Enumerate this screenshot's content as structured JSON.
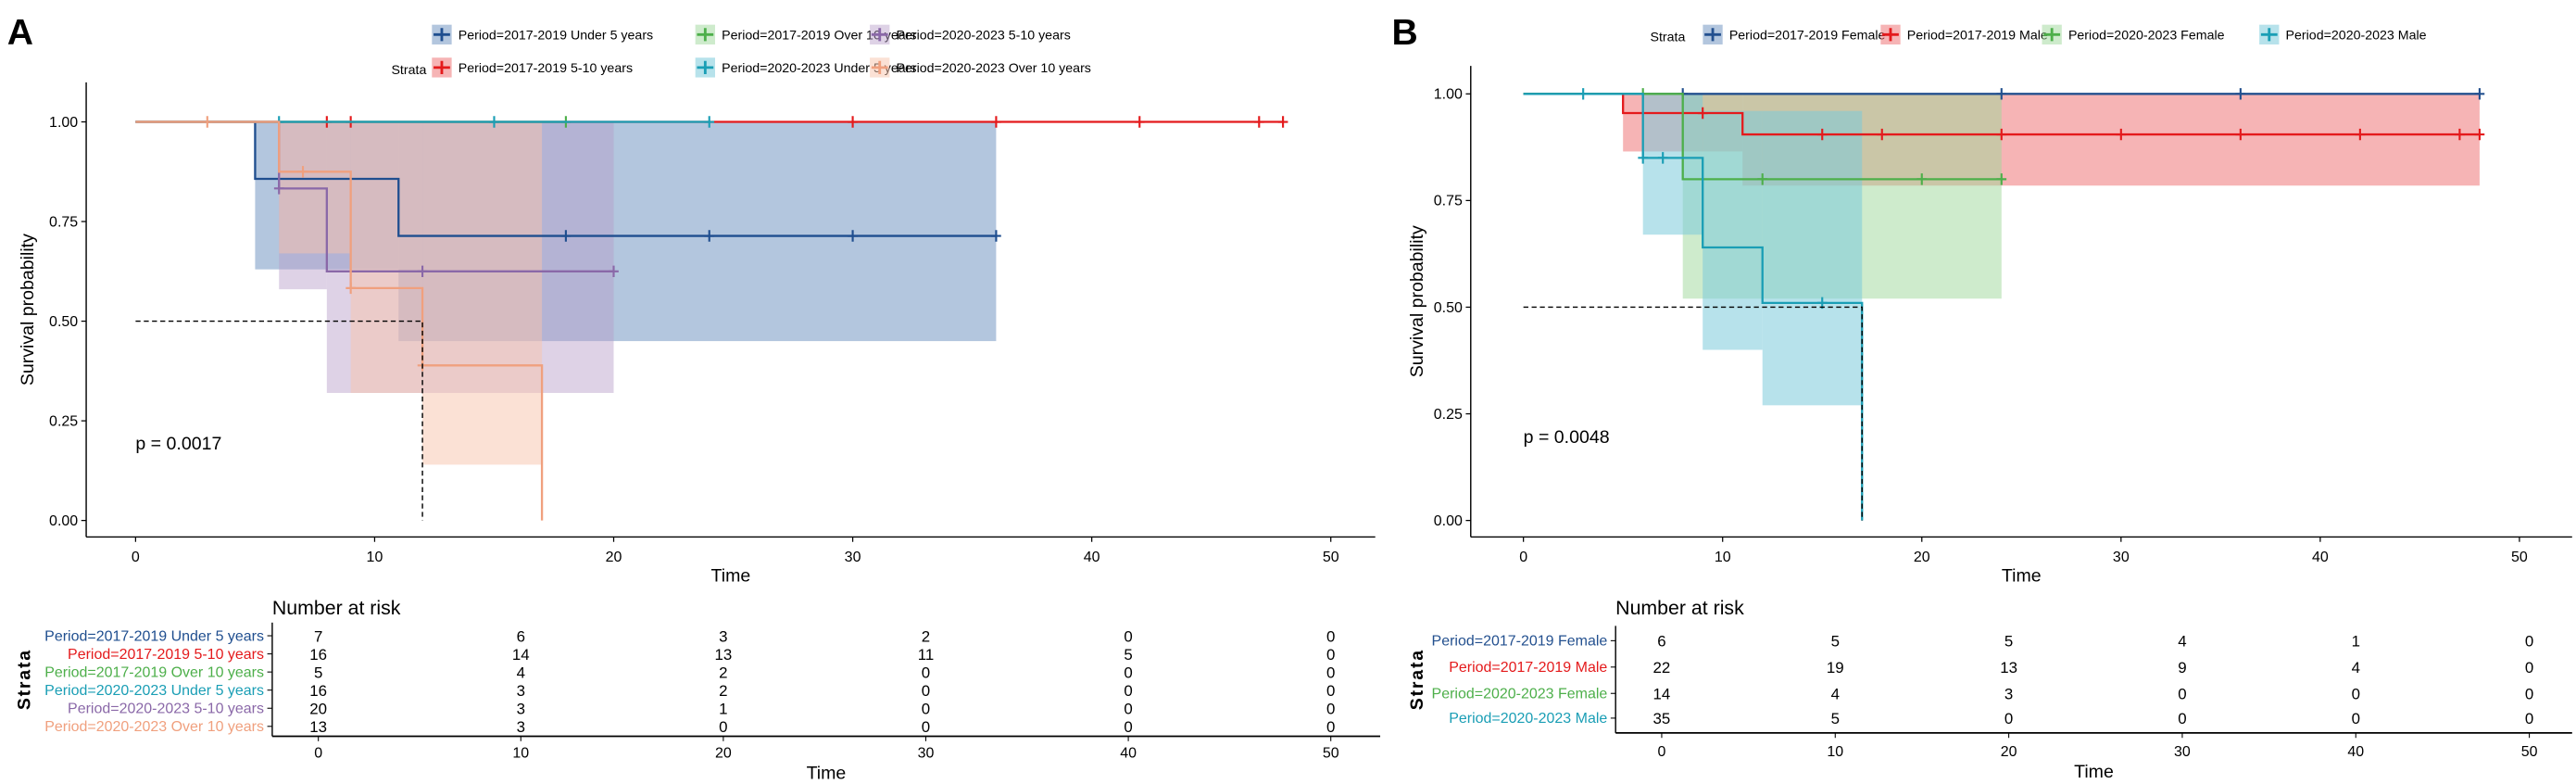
{
  "chart_data": [
    {
      "panel_label": "A",
      "type": "line",
      "subtype": "kaplan-meier",
      "legend_title": "Strata",
      "legend_placement": "top",
      "xlabel": "Time",
      "ylabel": "Survival probability",
      "xlim": [
        0,
        50
      ],
      "ylim": [
        0,
        1
      ],
      "xticks": [
        "0",
        "10",
        "20",
        "30",
        "40",
        "50"
      ],
      "yticks": [
        "0.00",
        "0.25",
        "0.50",
        "0.75",
        "1.00"
      ],
      "pvalue_text": "p = 0.0017",
      "median_line": {
        "survival": 0.5,
        "time": 12
      },
      "series": [
        {
          "name": "Period=2017-2019 Under 5 years",
          "color": "#1F4E8F",
          "fill": "#4A78B0",
          "fill_opacity": 0.42,
          "steps": [
            [
              0,
              1
            ],
            [
              5,
              0.857
            ],
            [
              11,
              0.714
            ]
          ],
          "end": 36,
          "censor": [
            18,
            24,
            30,
            36
          ],
          "ci": [
            [
              5,
              11,
              0.63,
              1
            ],
            [
              11,
              36,
              0.45,
              1
            ]
          ]
        },
        {
          "name": "Period=2017-2019 5-10 years",
          "color": "#E41A1C",
          "fill": "#EE6A6C",
          "fill_opacity": 0.5,
          "steps": [
            [
              0,
              1
            ]
          ],
          "end": 48,
          "censor": [
            8,
            9,
            30,
            36,
            42,
            47,
            48
          ],
          "ci": []
        },
        {
          "name": "Period=2017-2019 Over 10 years",
          "color": "#4DAF4A",
          "fill": "#9ED89A",
          "fill_opacity": 0.5,
          "steps": [
            [
              0,
              1
            ]
          ],
          "end": 18,
          "censor": [
            18
          ],
          "ci": []
        },
        {
          "name": "Period=2020-2023 Under 5 years",
          "color": "#1A9EB5",
          "fill": "#7CCBDB",
          "fill_opacity": 0.55,
          "steps": [
            [
              0,
              1
            ]
          ],
          "end": 24,
          "censor": [
            6,
            15,
            24
          ],
          "ci": []
        },
        {
          "name": "Period=2020-2023 5-10 years",
          "color": "#8A68A8",
          "fill": "#B59CC8",
          "fill_opacity": 0.45,
          "steps": [
            [
              0,
              1
            ],
            [
              6,
              0.833
            ],
            [
              8,
              0.625
            ]
          ],
          "end": 20,
          "censor": [
            6,
            12,
            20
          ],
          "ci": [
            [
              6,
              8,
              0.58,
              1
            ],
            [
              8,
              20,
              0.32,
              1
            ]
          ]
        },
        {
          "name": "Period=2020-2023 Over 10 years",
          "color": "#F0A07E",
          "fill": "#F8C4AC",
          "fill_opacity": 0.5,
          "steps": [
            [
              0,
              1
            ],
            [
              6,
              0.875
            ],
            [
              9,
              0.583
            ],
            [
              12,
              0.389
            ],
            [
              17,
              0
            ]
          ],
          "end": 17,
          "censor": [
            3,
            7,
            9,
            12
          ],
          "ci": [
            [
              6,
              9,
              0.67,
              1
            ],
            [
              9,
              12,
              0.32,
              1
            ],
            [
              12,
              17,
              0.14,
              1
            ]
          ]
        }
      ],
      "risk_table": {
        "title": "Number at risk",
        "ylabel": "Strata",
        "xlabel": "Time",
        "times": [
          "0",
          "10",
          "20",
          "30",
          "40",
          "50"
        ],
        "rows": [
          {
            "label": "Period=2017-2019 Under 5 years",
            "values": [
              "7",
              "6",
              "3",
              "2",
              "0",
              "0"
            ]
          },
          {
            "label": "Period=2017-2019 5-10 years",
            "values": [
              "16",
              "14",
              "13",
              "11",
              "5",
              "0"
            ]
          },
          {
            "label": "Period=2017-2019 Over 10 years",
            "values": [
              "5",
              "4",
              "2",
              "0",
              "0",
              "0"
            ]
          },
          {
            "label": "Period=2020-2023 Under 5 years",
            "values": [
              "16",
              "3",
              "2",
              "0",
              "0",
              "0"
            ]
          },
          {
            "label": "Period=2020-2023 5-10 years",
            "values": [
              "20",
              "3",
              "1",
              "0",
              "0",
              "0"
            ]
          },
          {
            "label": "Period=2020-2023 Over 10 years",
            "values": [
              "13",
              "3",
              "0",
              "0",
              "0",
              "0"
            ]
          }
        ]
      }
    },
    {
      "panel_label": "B",
      "type": "line",
      "subtype": "kaplan-meier",
      "legend_title": "Strata",
      "legend_placement": "top",
      "xlabel": "Time",
      "ylabel": "Survival probability",
      "xlim": [
        0,
        50
      ],
      "ylim": [
        0,
        1
      ],
      "xticks": [
        "0",
        "10",
        "20",
        "30",
        "40",
        "50"
      ],
      "yticks": [
        "0.00",
        "0.25",
        "0.50",
        "0.75",
        "1.00"
      ],
      "pvalue_text": "p = 0.0048",
      "median_line": {
        "survival": 0.5,
        "time": 17
      },
      "series": [
        {
          "name": "Period=2017-2019  Female",
          "color": "#23508F",
          "fill": "#4A78B0",
          "fill_opacity": 0.42,
          "steps": [
            [
              0,
              1
            ]
          ],
          "end": 48,
          "censor": [
            8,
            24,
            36,
            48
          ],
          "ci": []
        },
        {
          "name": "Period=2017-2019  Male",
          "color": "#E41A1C",
          "fill": "#EE6A6C",
          "fill_opacity": 0.5,
          "steps": [
            [
              0,
              1
            ],
            [
              5,
              0.955
            ],
            [
              11,
              0.905
            ]
          ],
          "end": 48,
          "censor": [
            9,
            15,
            18,
            24,
            30,
            36,
            42,
            47,
            48
          ],
          "ci": [
            [
              5,
              11,
              0.865,
              1
            ],
            [
              11,
              48,
              0.785,
              1
            ]
          ]
        },
        {
          "name": "Period=2020-2023  Female",
          "color": "#4DAF4A",
          "fill": "#9ED89A",
          "fill_opacity": 0.5,
          "steps": [
            [
              0,
              1
            ],
            [
              8,
              0.8
            ]
          ],
          "end": 24,
          "censor": [
            6,
            12,
            20,
            24
          ],
          "ci": [
            [
              8,
              24,
              0.52,
              1
            ]
          ]
        },
        {
          "name": "Period=2020-2023  Male",
          "color": "#1A9EB5",
          "fill": "#7CCBDB",
          "fill_opacity": 0.55,
          "steps": [
            [
              0,
              1
            ],
            [
              6,
              0.85
            ],
            [
              9,
              0.64
            ],
            [
              12,
              0.51
            ],
            [
              17,
              0
            ]
          ],
          "end": 17,
          "censor": [
            3,
            6,
            7,
            15
          ],
          "ci": [
            [
              6,
              9,
              0.67,
              1
            ],
            [
              9,
              12,
              0.4,
              0.96
            ],
            [
              12,
              17,
              0.27,
              0.96
            ]
          ]
        }
      ],
      "risk_table": {
        "title": "Number at risk",
        "ylabel": "Strata",
        "xlabel": "Time",
        "times": [
          "0",
          "10",
          "20",
          "30",
          "40",
          "50"
        ],
        "rows": [
          {
            "label": "Period=2017-2019 Female",
            "values": [
              "6",
              "5",
              "5",
              "4",
              "1",
              "0"
            ]
          },
          {
            "label": "Period=2017-2019 Male",
            "values": [
              "22",
              "19",
              "13",
              "9",
              "4",
              "0"
            ]
          },
          {
            "label": "Period=2020-2023 Female",
            "values": [
              "14",
              "4",
              "3",
              "0",
              "0",
              "0"
            ]
          },
          {
            "label": "Period=2020-2023 Male",
            "values": [
              "35",
              "5",
              "0",
              "0",
              "0",
              "0"
            ]
          }
        ]
      }
    }
  ]
}
